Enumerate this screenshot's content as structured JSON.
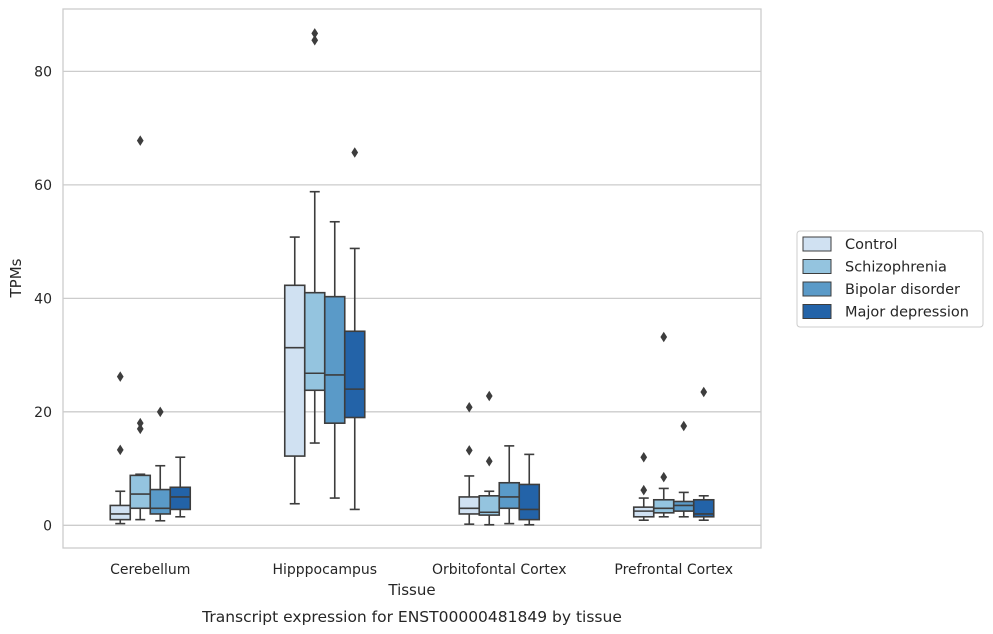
{
  "chart_data": {
    "type": "boxplot",
    "caption": "Transcript expression for ENST00000481849 by tissue",
    "xlabel": "Tissue",
    "ylabel": "TPMs",
    "ylim": [
      -4,
      91
    ],
    "yticks": [
      0,
      20,
      40,
      60,
      80
    ],
    "grid": "horizontal",
    "legend_position": "right",
    "categories": [
      "Cerebellum",
      "Hipppocampus",
      "Orbitofontal Cortex",
      "Prefrontal Cortex"
    ],
    "series": [
      {
        "name": "Control",
        "color": "#d0e1f2",
        "boxes": [
          {
            "whislo": 0.3,
            "q1": 1.0,
            "med": 2.0,
            "q3": 3.5,
            "whishi": 6.0,
            "fliers": [
              13.3,
              26.2
            ]
          },
          {
            "whislo": 3.8,
            "q1": 12.2,
            "med": 31.3,
            "q3": 42.3,
            "whishi": 50.8,
            "fliers": []
          },
          {
            "whislo": 0.2,
            "q1": 2.0,
            "med": 3.0,
            "q3": 5.0,
            "whishi": 8.7,
            "fliers": [
              13.2,
              20.8
            ]
          },
          {
            "whislo": 0.9,
            "q1": 1.5,
            "med": 2.5,
            "q3": 3.2,
            "whishi": 4.8,
            "fliers": [
              6.2,
              12.0
            ]
          }
        ]
      },
      {
        "name": "Schizophrenia",
        "color": "#94c4df",
        "boxes": [
          {
            "whislo": 1.0,
            "q1": 3.0,
            "med": 5.5,
            "q3": 8.8,
            "whishi": 9.0,
            "fliers": [
              17.0,
              18.0,
              67.8
            ]
          },
          {
            "whislo": 14.5,
            "q1": 23.8,
            "med": 26.8,
            "q3": 41.0,
            "whishi": 58.8,
            "fliers": [
              85.5,
              86.7
            ]
          },
          {
            "whislo": 0.1,
            "q1": 1.8,
            "med": 2.3,
            "q3": 5.2,
            "whishi": 6.0,
            "fliers": [
              11.3,
              22.8
            ]
          },
          {
            "whislo": 1.5,
            "q1": 2.2,
            "med": 3.0,
            "q3": 4.5,
            "whishi": 6.5,
            "fliers": [
              8.5,
              33.2
            ]
          }
        ]
      },
      {
        "name": "Bipolar disorder",
        "color": "#5a9ac8",
        "boxes": [
          {
            "whislo": 0.8,
            "q1": 2.0,
            "med": 3.0,
            "q3": 6.3,
            "whishi": 10.5,
            "fliers": [
              20.0
            ]
          },
          {
            "whislo": 4.8,
            "q1": 18.0,
            "med": 26.5,
            "q3": 40.3,
            "whishi": 53.5,
            "fliers": []
          },
          {
            "whislo": 0.3,
            "q1": 3.0,
            "med": 5.0,
            "q3": 7.5,
            "whishi": 14.0,
            "fliers": []
          },
          {
            "whislo": 1.5,
            "q1": 2.5,
            "med": 3.5,
            "q3": 4.2,
            "whishi": 5.8,
            "fliers": [
              17.5
            ]
          }
        ]
      },
      {
        "name": "Major depression",
        "color": "#2363a8",
        "boxes": [
          {
            "whislo": 1.5,
            "q1": 2.8,
            "med": 5.0,
            "q3": 6.7,
            "whishi": 12.0,
            "fliers": []
          },
          {
            "whislo": 2.8,
            "q1": 19.0,
            "med": 24.0,
            "q3": 34.2,
            "whishi": 48.8,
            "fliers": [
              65.7
            ]
          },
          {
            "whislo": 0.1,
            "q1": 1.0,
            "med": 2.8,
            "q3": 7.2,
            "whishi": 12.5,
            "fliers": []
          },
          {
            "whislo": 0.9,
            "q1": 1.5,
            "med": 2.0,
            "q3": 4.5,
            "whishi": 5.2,
            "fliers": [
              23.5
            ]
          }
        ]
      }
    ]
  }
}
